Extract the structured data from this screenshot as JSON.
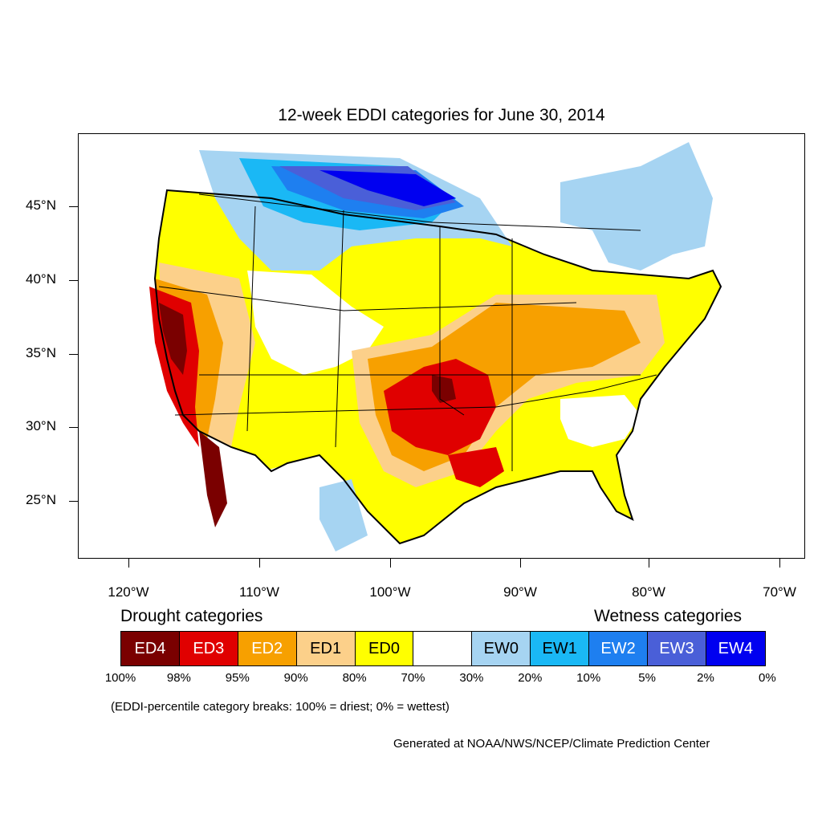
{
  "title": "12-week EDDI categories for June 30, 2014",
  "axes": {
    "y_labels": [
      "45°N",
      "40°N",
      "35°N",
      "30°N",
      "25°N"
    ],
    "x_labels": [
      "120°W",
      "110°W",
      "100°W",
      "90°W",
      "80°W",
      "70°W"
    ]
  },
  "legend": {
    "drought_title": "Drought categories",
    "wetness_title": "Wetness categories",
    "categories": [
      {
        "label": "ED4",
        "color": "#7a0000",
        "text_color": "#ffffff"
      },
      {
        "label": "ED3",
        "color": "#e00000",
        "text_color": "#ffffff"
      },
      {
        "label": "ED2",
        "color": "#f7a000",
        "text_color": "#ffffff"
      },
      {
        "label": "ED1",
        "color": "#fcd08a",
        "text_color": "#000000"
      },
      {
        "label": "ED0",
        "color": "#ffff00",
        "text_color": "#000000"
      },
      {
        "label": "",
        "color": "#ffffff",
        "text_color": "#000000"
      },
      {
        "label": "EW0",
        "color": "#a6d4f2",
        "text_color": "#000000"
      },
      {
        "label": "EW1",
        "color": "#1ab8f5",
        "text_color": "#000000"
      },
      {
        "label": "EW2",
        "color": "#1e7ff0",
        "text_color": "#ffffff"
      },
      {
        "label": "EW3",
        "color": "#4a5fd8",
        "text_color": "#ffffff"
      },
      {
        "label": "EW4",
        "color": "#0000f0",
        "text_color": "#ffffff"
      }
    ],
    "breaks": [
      "100%",
      "98%",
      "95%",
      "90%",
      "80%",
      "70%",
      "30%",
      "20%",
      "10%",
      "5%",
      "2%",
      "0%"
    ]
  },
  "note": "(EDDI-percentile category breaks: 100% = driest; 0% = wettest)",
  "credit": "Generated at NOAA/NWS/NCEP/Climate Prediction Center"
}
